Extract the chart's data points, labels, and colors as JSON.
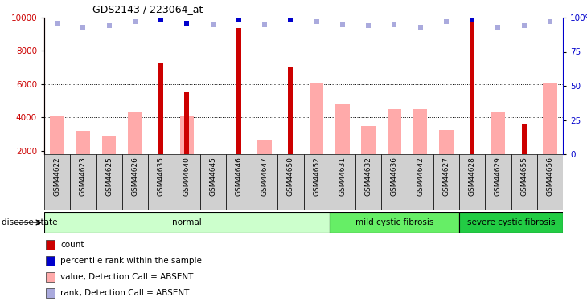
{
  "title": "GDS2143 / 223064_at",
  "samples": [
    "GSM44622",
    "GSM44623",
    "GSM44625",
    "GSM44626",
    "GSM44635",
    "GSM44640",
    "GSM44645",
    "GSM44646",
    "GSM44647",
    "GSM44650",
    "GSM44652",
    "GSM44631",
    "GSM44632",
    "GSM44636",
    "GSM44642",
    "GSM44627",
    "GSM44628",
    "GSM44629",
    "GSM44655",
    "GSM44656"
  ],
  "counts": [
    null,
    null,
    null,
    null,
    7250,
    5500,
    null,
    9350,
    null,
    7050,
    null,
    null,
    null,
    null,
    null,
    null,
    9850,
    null,
    3600,
    null
  ],
  "pink_values": [
    4050,
    3200,
    2850,
    4300,
    null,
    4050,
    null,
    null,
    2650,
    null,
    6050,
    4850,
    3500,
    4500,
    4500,
    3250,
    null,
    4350,
    null,
    6050
  ],
  "blue_rank_dots": [
    96,
    93,
    94,
    97,
    98,
    96,
    95,
    98,
    95,
    98,
    97,
    95,
    94,
    95,
    93,
    97,
    99,
    93,
    94,
    97
  ],
  "dark_blue_rank": [
    false,
    false,
    false,
    false,
    true,
    true,
    false,
    true,
    false,
    true,
    false,
    false,
    false,
    false,
    false,
    false,
    true,
    false,
    false,
    false
  ],
  "groups": [
    {
      "label": "normal",
      "start": 0,
      "end": 11,
      "color": "#ccffcc"
    },
    {
      "label": "mild cystic fibrosis",
      "start": 11,
      "end": 16,
      "color": "#66ee66"
    },
    {
      "label": "severe cystic fibrosis",
      "start": 16,
      "end": 20,
      "color": "#22cc44"
    }
  ],
  "ylim_left": [
    1800,
    10000
  ],
  "ylim_right": [
    0,
    100
  ],
  "yticks_left": [
    2000,
    4000,
    6000,
    8000,
    10000
  ],
  "yticks_right": [
    0,
    25,
    50,
    75,
    100
  ],
  "count_color": "#cc0000",
  "pink_color": "#ffaaaa",
  "dot_color_light": "#aaaadd",
  "dot_color_dark": "#0000cc",
  "disease_state_label": "disease state",
  "legend": [
    {
      "label": "count",
      "color": "#cc0000"
    },
    {
      "label": "percentile rank within the sample",
      "color": "#0000cc"
    },
    {
      "label": "value, Detection Call = ABSENT",
      "color": "#ffaaaa"
    },
    {
      "label": "rank, Detection Call = ABSENT",
      "color": "#aaaadd"
    }
  ]
}
